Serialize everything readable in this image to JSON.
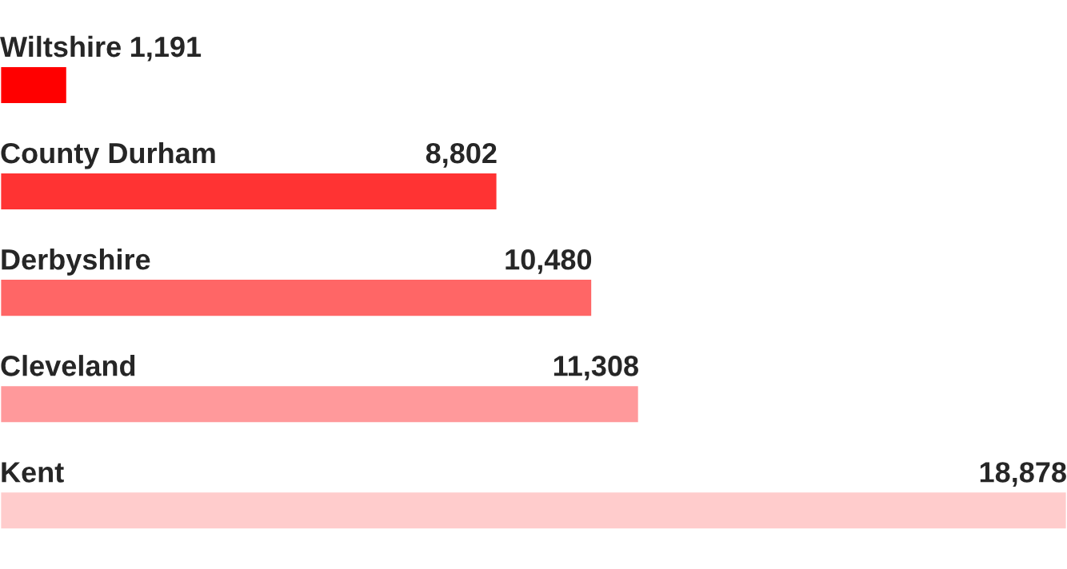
{
  "chart_data": {
    "type": "bar",
    "orientation": "horizontal",
    "value_labels": [
      "1,191",
      "8,802",
      "10,480",
      "11,308",
      "18,878"
    ],
    "categories": [
      "Wiltshire",
      "County Durham",
      "Derbyshire",
      "Cleveland",
      "Kent"
    ],
    "values": [
      1191,
      8802,
      10480,
      11308,
      18878
    ],
    "colors": [
      "#ff0000",
      "#ff3333",
      "#ff6666",
      "#ff999b",
      "#ffcccc"
    ]
  }
}
